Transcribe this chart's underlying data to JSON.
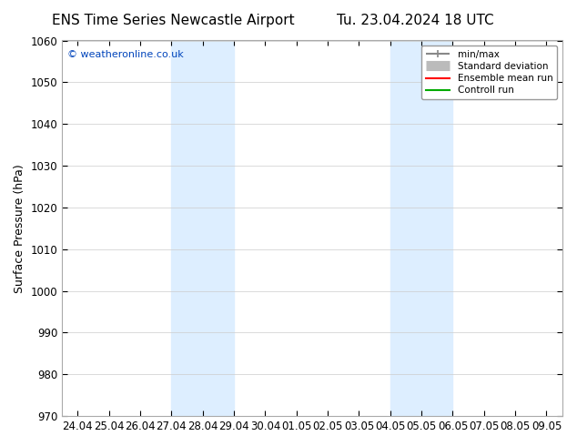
{
  "title_left": "ENS Time Series Newcastle Airport",
  "title_right": "Tu. 23.04.2024 18 UTC",
  "ylabel": "Surface Pressure (hPa)",
  "ylim": [
    970,
    1060
  ],
  "yticks": [
    970,
    980,
    990,
    1000,
    1010,
    1020,
    1030,
    1040,
    1050,
    1060
  ],
  "xlabels": [
    "24.04",
    "25.04",
    "26.04",
    "27.04",
    "28.04",
    "29.04",
    "30.04",
    "01.05",
    "02.05",
    "03.05",
    "04.05",
    "05.05",
    "06.05",
    "07.05",
    "08.05",
    "09.05"
  ],
  "blue_bands": [
    [
      "27.04",
      "29.04"
    ],
    [
      "04.05",
      "06.05"
    ]
  ],
  "band_color": "#ddeeff",
  "background_color": "#ffffff",
  "plot_bg_color": "#ffffff",
  "copyright_text": "© weatheronline.co.uk",
  "legend_items": [
    {
      "label": "min/max",
      "color": "#888888",
      "lw": 1.5
    },
    {
      "label": "Standard deviation",
      "color": "#bbbbbb",
      "lw": 8
    },
    {
      "label": "Ensemble mean run",
      "color": "#ff0000",
      "lw": 1.5
    },
    {
      "label": "Controll run",
      "color": "#00aa00",
      "lw": 1.5
    }
  ],
  "title_fontsize": 11,
  "tick_fontsize": 8.5,
  "ylabel_fontsize": 9
}
